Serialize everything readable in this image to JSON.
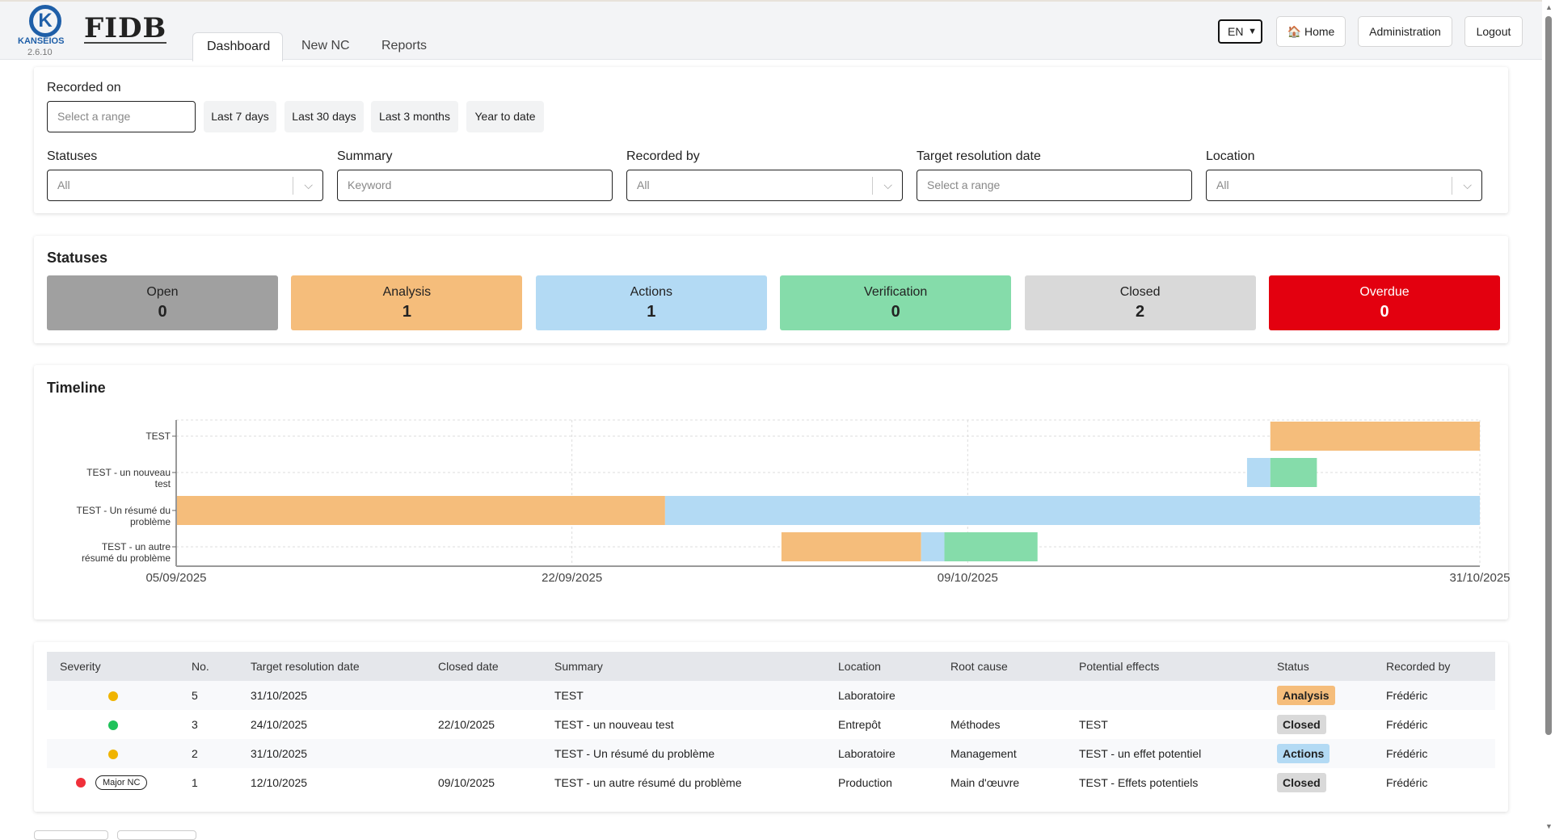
{
  "header": {
    "logo_brand": "KANSEIOS",
    "logo_letter": "K",
    "version": "2.6.10",
    "app_logo": "FIDB",
    "tabs": [
      {
        "label": "Dashboard",
        "active": true
      },
      {
        "label": "New NC"
      },
      {
        "label": "Reports"
      }
    ],
    "language": "EN",
    "home": "Home",
    "home_icon": "house-icon",
    "administration": "Administration",
    "logout": "Logout"
  },
  "filters": {
    "recorded_on": {
      "label": "Recorded on",
      "placeholder": "Select a range",
      "quick": [
        "Last 7 days",
        "Last 30 days",
        "Last 3 months",
        "Year to date"
      ]
    },
    "statuses": {
      "label": "Statuses",
      "value": "All"
    },
    "summary": {
      "label": "Summary",
      "placeholder": "Keyword"
    },
    "recorded_by": {
      "label": "Recorded by",
      "value": "All"
    },
    "target_date": {
      "label": "Target resolution date",
      "placeholder": "Select a range"
    },
    "location": {
      "label": "Location",
      "value": "All"
    }
  },
  "statuses": {
    "title": "Statuses",
    "cards": [
      {
        "label": "Open",
        "count": "0",
        "color": "#a0a0a0",
        "text": "#222"
      },
      {
        "label": "Analysis",
        "count": "1",
        "color": "#f5bd7b",
        "text": "#222"
      },
      {
        "label": "Actions",
        "count": "1",
        "color": "#b3daf4",
        "text": "#222"
      },
      {
        "label": "Verification",
        "count": "0",
        "color": "#85dcaa",
        "text": "#222"
      },
      {
        "label": "Closed",
        "count": "2",
        "color": "#d9d9d9",
        "text": "#222"
      },
      {
        "label": "Overdue",
        "count": "0",
        "color": "#e3000f",
        "text": "#fff"
      }
    ]
  },
  "timeline": {
    "title": "Timeline"
  },
  "chart_data": {
    "type": "bar",
    "orientation": "horizontal-gantt",
    "xlim": [
      "05/09/2025",
      "31/10/2025"
    ],
    "x_ticks": [
      "05/09/2025",
      "22/09/2025",
      "09/10/2025",
      "31/10/2025"
    ],
    "grid": true,
    "phase_colors": {
      "Analysis": "#f5bd7b",
      "Actions": "#b3daf4",
      "Verification": "#85dcaa"
    },
    "categories": [
      "TEST",
      "TEST - un nouveau test",
      "TEST - Un résumé du problème",
      "TEST - un autre résumé du problème"
    ],
    "category_labels": [
      [
        "TEST"
      ],
      [
        "TEST - un nouveau",
        "test"
      ],
      [
        "TEST - Un résumé du",
        "problème"
      ],
      [
        "TEST - un autre",
        "résumé du problème"
      ]
    ],
    "segments": [
      {
        "row": 0,
        "phase": "Analysis",
        "start": "22/10/2025",
        "end": "31/10/2025"
      },
      {
        "row": 1,
        "phase": "Actions",
        "start": "21/10/2025",
        "end": "22/10/2025"
      },
      {
        "row": 1,
        "phase": "Verification",
        "start": "22/10/2025",
        "end": "24/10/2025"
      },
      {
        "row": 2,
        "phase": "Analysis",
        "start": "05/09/2025",
        "end": "26/09/2025"
      },
      {
        "row": 2,
        "phase": "Actions",
        "start": "26/09/2025",
        "end": "31/10/2025"
      },
      {
        "row": 3,
        "phase": "Analysis",
        "start": "01/10/2025",
        "end": "07/10/2025"
      },
      {
        "row": 3,
        "phase": "Actions",
        "start": "07/10/2025",
        "end": "08/10/2025"
      },
      {
        "row": 3,
        "phase": "Verification",
        "start": "08/10/2025",
        "end": "12/10/2025"
      }
    ]
  },
  "table": {
    "columns": [
      "Severity",
      "No.",
      "Target resolution date",
      "Closed date",
      "Summary",
      "Location",
      "Root cause",
      "Potential effects",
      "Status",
      "Recorded by"
    ],
    "rows": [
      {
        "severity_color": "#f0b400",
        "severity_tag": "",
        "no": "5",
        "target": "31/10/2025",
        "closed": "",
        "summary": "TEST",
        "location": "Laboratoire",
        "root": "",
        "effects": "",
        "status": "Analysis",
        "status_color": "#f5bd7b",
        "by": "Frédéric"
      },
      {
        "severity_color": "#1fc25a",
        "severity_tag": "",
        "no": "3",
        "target": "24/10/2025",
        "closed": "22/10/2025",
        "summary": "TEST - un nouveau test",
        "location": "Entrepôt",
        "root": "Méthodes",
        "effects": "TEST",
        "status": "Closed",
        "status_color": "#d9d9d9",
        "by": "Frédéric"
      },
      {
        "severity_color": "#f0b400",
        "severity_tag": "",
        "no": "2",
        "target": "31/10/2025",
        "closed": "",
        "summary": "TEST - Un résumé du problème",
        "location": "Laboratoire",
        "root": "Management",
        "effects": "TEST - un effet potentiel",
        "status": "Actions",
        "status_color": "#b3daf4",
        "by": "Frédéric"
      },
      {
        "severity_color": "#f0303a",
        "severity_tag": "Major NC",
        "no": "1",
        "target": "12/10/2025",
        "closed": "09/10/2025",
        "summary": "TEST - un autre résumé du problème",
        "location": "Production",
        "root": "Main d'œuvre",
        "effects": "TEST - Effets potentiels",
        "status": "Closed",
        "status_color": "#d9d9d9",
        "by": "Frédéric"
      }
    ]
  }
}
